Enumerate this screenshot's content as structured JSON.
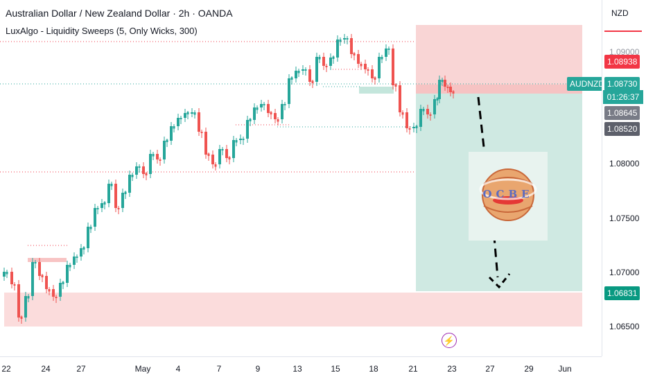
{
  "header": {
    "title": "Australian Dollar / New Zealand Dollar · 2h · OANDA",
    "indicator": "LuxAlgo - Liquidity Sweeps (5, Only Wicks, 300)"
  },
  "price_axis": {
    "currency": "NZD",
    "ticks": [
      "1.09000",
      "1.08000",
      "1.07500",
      "1.07000",
      "1.06500"
    ],
    "labels": {
      "stop": "1.08938",
      "symbol": "AUDNZD",
      "current": "1.08730",
      "countdown": "01:26:37",
      "level_a": "1.08645",
      "level_b": "1.08520",
      "target": "1.06831"
    },
    "colors": {
      "red": "#f23645",
      "green": "#26a69a",
      "gray": "#787b86",
      "dark": "#5d606b",
      "target": "#089981"
    }
  },
  "time_axis": {
    "ticks": [
      "22",
      "24",
      "27",
      "May",
      "4",
      "7",
      "9",
      "13",
      "15",
      "18",
      "21",
      "23",
      "27",
      "29",
      "Jun"
    ]
  },
  "logo": {
    "text": "OCBE"
  },
  "icons": {
    "alert": "lightning-icon"
  }
}
